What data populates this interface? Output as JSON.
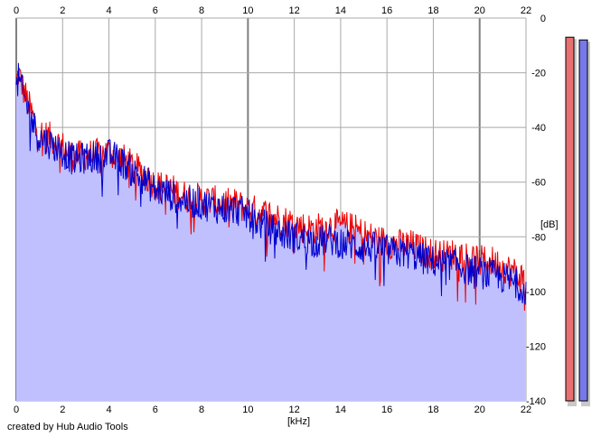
{
  "chart_data": {
    "type": "area",
    "xlabel": "[kHz]",
    "ylabel": "[dB]",
    "xlim": [
      0,
      22
    ],
    "ylim": [
      -140,
      0
    ],
    "x_ticks": [
      0,
      2,
      4,
      6,
      8,
      10,
      12,
      14,
      16,
      18,
      20,
      22
    ],
    "y_ticks": [
      0,
      -20,
      -40,
      -60,
      -80,
      -100,
      -120,
      -140
    ],
    "grid": true,
    "credit": "created by Hub Audio Tools",
    "colors": {
      "background": "#ffffff",
      "fill": "#c0c0ff",
      "grid": "#a8a8a8",
      "grid_major": "#808080",
      "series_a": "#ee0000",
      "series_b": "#0000cc",
      "meter_left": "#e87070",
      "meter_right": "#7878e8"
    },
    "series": [
      {
        "x": [
          0,
          0.1,
          0.3,
          0.5,
          0.8,
          1.0,
          1.5,
          2.0,
          2.5,
          3.0,
          3.5,
          4.0,
          4.5,
          5.0,
          5.5,
          6.0,
          6.5,
          7.0,
          7.5,
          8.0,
          8.5,
          9.0,
          9.5,
          10.0,
          10.5,
          11.0,
          11.5,
          12.0,
          12.5,
          13.0,
          13.5,
          14.0,
          14.5,
          15.0,
          15.5,
          16.0,
          16.5,
          17.0,
          17.5,
          18.0,
          18.5,
          19.0,
          19.5,
          20.0,
          20.5,
          21.0,
          21.5,
          22.0
        ],
        "values": [
          -24,
          -20,
          -26,
          -31,
          -38,
          -42,
          -44,
          -47,
          -51,
          -50,
          -50,
          -49,
          -51,
          -54,
          -57,
          -61,
          -62,
          -64,
          -66,
          -66,
          -67,
          -68,
          -68,
          -70,
          -71,
          -72,
          -74,
          -75,
          -77,
          -77,
          -76,
          -76,
          -77,
          -79,
          -81,
          -82,
          -83,
          -83,
          -85,
          -86,
          -87,
          -86,
          -87,
          -89,
          -89,
          -91,
          -93,
          -96
        ]
      },
      {
        "x": [
          0,
          0.1,
          0.3,
          0.5,
          0.8,
          1.0,
          1.5,
          2.0,
          2.5,
          3.0,
          3.5,
          4.0,
          4.5,
          5.0,
          5.5,
          6.0,
          6.5,
          7.0,
          7.5,
          8.0,
          8.5,
          9.0,
          9.5,
          10.0,
          10.5,
          11.0,
          11.5,
          12.0,
          12.5,
          13.0,
          13.5,
          14.0,
          14.5,
          15.0,
          15.5,
          16.0,
          16.5,
          17.0,
          17.5,
          18.0,
          18.5,
          19.0,
          19.5,
          20.0,
          20.5,
          21.0,
          21.5,
          22.0
        ],
        "values": [
          -27,
          -22,
          -28,
          -33,
          -40,
          -44,
          -46,
          -49,
          -52,
          -51,
          -51,
          -50,
          -52,
          -56,
          -59,
          -63,
          -64,
          -66,
          -67,
          -68,
          -69,
          -70,
          -70,
          -72,
          -75,
          -77,
          -79,
          -80,
          -81,
          -82,
          -81,
          -82,
          -83,
          -84,
          -84,
          -85,
          -86,
          -86,
          -88,
          -89,
          -90,
          -90,
          -92,
          -93,
          -94,
          -95,
          -97,
          -99
        ]
      }
    ],
    "meters": [
      {
        "channel": "left",
        "level_db": -7
      },
      {
        "channel": "right",
        "level_db": -8
      }
    ]
  }
}
